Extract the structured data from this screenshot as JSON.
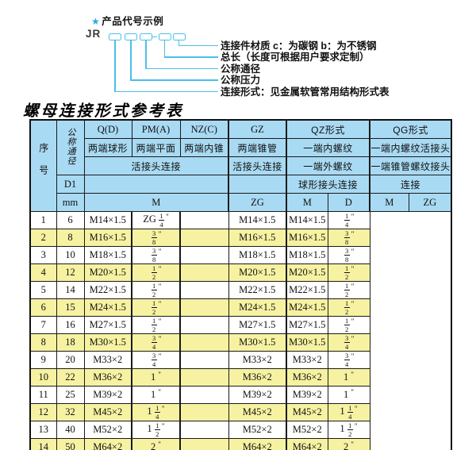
{
  "diagram": {
    "star": "★",
    "title": "产品代号示例",
    "prefix": "JR",
    "labels": [
      "连接件材质  c：为碳钢  b：为不锈钢",
      "总长（长度可根据用户要求定制）",
      "公称通径",
      "公称压力",
      "连接形式：见金属软管常用结构形式表"
    ]
  },
  "table": {
    "title": "螺母连接形式参考表",
    "header": {
      "col_seq": "序号",
      "col_diameter": "公称通径",
      "col_d1": "D1",
      "col_mm": "mm",
      "r1": [
        "Q(D)",
        "PM(A)",
        "NZ(C)",
        "GZ",
        "QZ形式",
        "QG形式"
      ],
      "r2": [
        "两端球形",
        "两端平面",
        "两端内锥",
        "两端锥管",
        "一端内螺纹",
        "一端内螺纹活接头"
      ],
      "r3": [
        "活接头连接",
        "活接头连接",
        "一端外螺纹",
        "一端锥管螺纹接头"
      ],
      "r4": [
        "球形接头连接",
        "连接"
      ],
      "r5": [
        "M",
        "ZG",
        "M",
        "D",
        "M",
        "ZG"
      ]
    },
    "rows": [
      {
        "seq": "1",
        "mm": "6",
        "m": "M14×1.5",
        "gz": "ZG 1/4\"",
        "qz_m": "",
        "qz_d": "M14×1.5",
        "qg_m": "M14×1.5",
        "qg_zg": "1/4\""
      },
      {
        "seq": "2",
        "mm": "8",
        "m": "M16×1.5",
        "gz": "3/8\"",
        "qz_m": "",
        "qz_d": "M16×1.5",
        "qg_m": "M16×1.5",
        "qg_zg": "3/8\""
      },
      {
        "seq": "3",
        "mm": "10",
        "m": "M18×1.5",
        "gz": "3/8\"",
        "qz_m": "",
        "qz_d": "M18×1.5",
        "qg_m": "M18×1.5",
        "qg_zg": "3/8\""
      },
      {
        "seq": "4",
        "mm": "12",
        "m": "M20×1.5",
        "gz": "1/2\"",
        "qz_m": "",
        "qz_d": "M20×1.5",
        "qg_m": "M20×1.5",
        "qg_zg": "1/2\""
      },
      {
        "seq": "5",
        "mm": "14",
        "m": "M22×1.5",
        "gz": "1/2\"",
        "qz_m": "",
        "qz_d": "M22×1.5",
        "qg_m": "M22×1.5",
        "qg_zg": "1/2\""
      },
      {
        "seq": "6",
        "mm": "15",
        "m": "M24×1.5",
        "gz": "1/2\"",
        "qz_m": "",
        "qz_d": "M24×1.5",
        "qg_m": "M24×1.5",
        "qg_zg": "1/2\""
      },
      {
        "seq": "7",
        "mm": "16",
        "m": "M27×1.5",
        "gz": "1/2\"",
        "qz_m": "",
        "qz_d": "M27×1.5",
        "qg_m": "M27×1.5",
        "qg_zg": "1/2\""
      },
      {
        "seq": "8",
        "mm": "18",
        "m": "M30×1.5",
        "gz": "3/4\"",
        "qz_m": "",
        "qz_d": "M30×1.5",
        "qg_m": "M30×1.5",
        "qg_zg": "3/4\""
      },
      {
        "seq": "9",
        "mm": "20",
        "m": "M33×2",
        "gz": "3/4\"",
        "qz_m": "",
        "qz_d": "M33×2",
        "qg_m": "M33×2",
        "qg_zg": "3/4\""
      },
      {
        "seq": "10",
        "mm": "22",
        "m": "M36×2",
        "gz": "1\"",
        "qz_m": "",
        "qz_d": "M36×2",
        "qg_m": "M36×2",
        "qg_zg": "1\""
      },
      {
        "seq": "11",
        "mm": "25",
        "m": "M39×2",
        "gz": "1\"",
        "qz_m": "",
        "qz_d": "M39×2",
        "qg_m": "M39×2",
        "qg_zg": "1\""
      },
      {
        "seq": "12",
        "mm": "32",
        "m": "M45×2",
        "gz": "1 1/4\"",
        "qz_m": "",
        "qz_d": "M45×2",
        "qg_m": "M45×2",
        "qg_zg": "1 1/4\""
      },
      {
        "seq": "13",
        "mm": "40",
        "m": "M52×2",
        "gz": "1 1/2\"",
        "qz_m": "",
        "qz_d": "M52×2",
        "qg_m": "M52×2",
        "qg_zg": "1 1/2\""
      },
      {
        "seq": "14",
        "mm": "50",
        "m": "M64×2",
        "gz": "2\"",
        "qz_m": "",
        "qz_d": "M64×2",
        "qg_m": "M64×2",
        "qg_zg": "2\""
      }
    ],
    "colors": {
      "header_bg": "#a9daf3",
      "alt_row_bg": "#f6f2a2",
      "border": "#1a1a1a",
      "accent": "#4bbfe9",
      "star": "#29abe2"
    }
  }
}
